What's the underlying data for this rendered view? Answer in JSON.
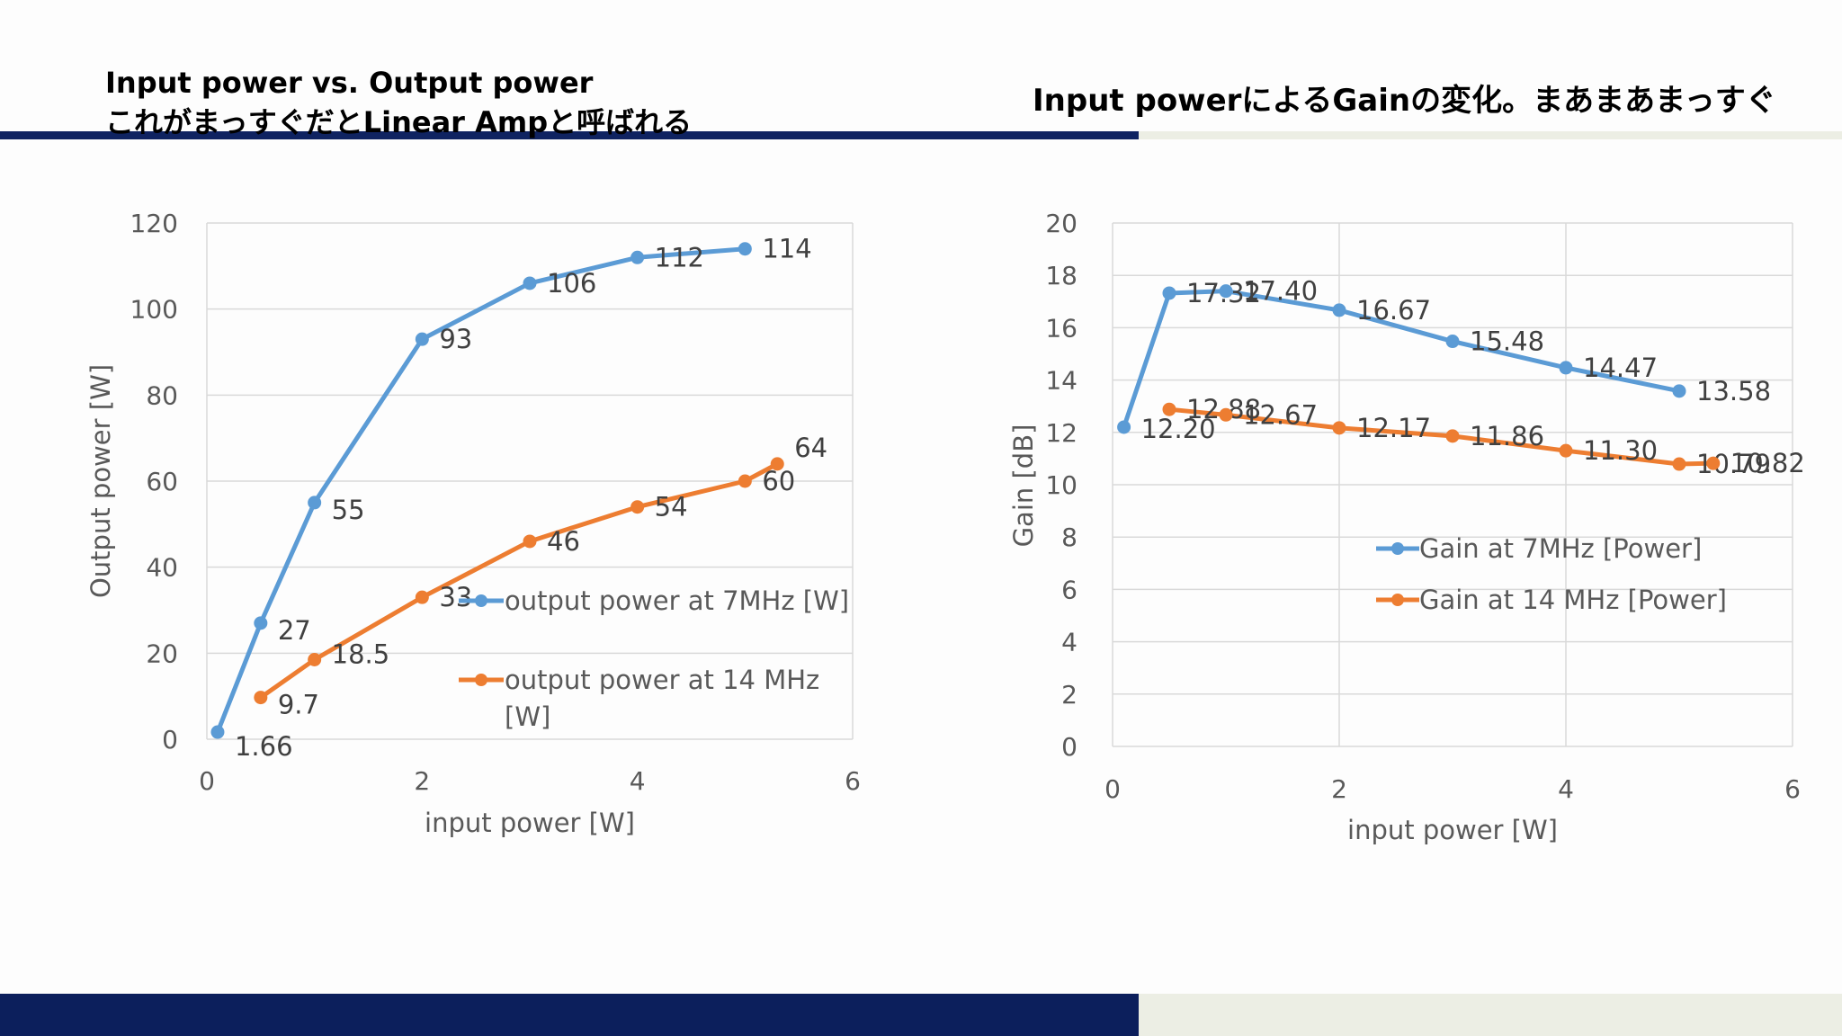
{
  "slide": {
    "title_left_line1": "Input power vs. Output power",
    "title_left_line2": "これがまっすぐだとLinear Ampと呼ばれる",
    "title_right": "Input powerによるGainの変化。まあまあまっすぐ"
  },
  "colors": {
    "series_blue": "#5b9bd5",
    "series_orange": "#ed7d31",
    "band_navy": "#0f2361",
    "band_beige": "#eceee4"
  },
  "chart_data": [
    {
      "type": "line",
      "xlabel": "input power [W]",
      "ylabel": "Output power [W]",
      "xlim": [
        0,
        6
      ],
      "ylim": [
        0,
        120
      ],
      "xticks": [
        0,
        2,
        4,
        6
      ],
      "yticks": [
        0,
        20,
        40,
        60,
        80,
        100,
        120
      ],
      "grid": "horizontal",
      "legend_position": "right-middle",
      "series": [
        {
          "name": "output power at 7MHz [W]",
          "color": "#5b9bd5",
          "points": [
            [
              0.1,
              1.66
            ],
            [
              0.5,
              27
            ],
            [
              1,
              55
            ],
            [
              2,
              93
            ],
            [
              3,
              106
            ],
            [
              4,
              112
            ],
            [
              5,
              114
            ]
          ],
          "labels": [
            "1.66",
            "27",
            "55",
            "93",
            "106",
            "112",
            "114"
          ]
        },
        {
          "name": "output power at 14 MHz [W]",
          "color": "#ed7d31",
          "points": [
            [
              0.5,
              9.7
            ],
            [
              1,
              18.5
            ],
            [
              2,
              33
            ],
            [
              3,
              46
            ],
            [
              4,
              54
            ],
            [
              5,
              60
            ],
            [
              5.3,
              64
            ]
          ],
          "labels": [
            "9.7",
            "18.5",
            "33",
            "46",
            "54",
            "60",
            "64"
          ]
        }
      ]
    },
    {
      "type": "line",
      "xlabel": "input power [W]",
      "ylabel": "Gain [dB]",
      "xlim": [
        0,
        6
      ],
      "ylim": [
        0,
        20
      ],
      "xticks": [
        0,
        2,
        4,
        6
      ],
      "yticks": [
        0,
        2,
        4,
        6,
        8,
        10,
        12,
        14,
        16,
        18,
        20
      ],
      "grid": "both",
      "legend_position": "right-middle",
      "series": [
        {
          "name": "Gain at 7MHz [Power]",
          "color": "#5b9bd5",
          "points": [
            [
              0.1,
              12.2
            ],
            [
              0.5,
              17.32
            ],
            [
              1,
              17.4
            ],
            [
              2,
              16.67
            ],
            [
              3,
              15.48
            ],
            [
              4,
              14.47
            ],
            [
              5,
              13.58
            ]
          ],
          "labels": [
            "12.20",
            "17.32",
            "17.40",
            "16.67",
            "15.48",
            "14.47",
            "13.58"
          ]
        },
        {
          "name": "Gain at 14 MHz [Power]",
          "color": "#ed7d31",
          "points": [
            [
              0.5,
              12.88
            ],
            [
              1,
              12.67
            ],
            [
              2,
              12.17
            ],
            [
              3,
              11.86
            ],
            [
              4,
              11.3
            ],
            [
              5,
              10.79
            ],
            [
              5.3,
              10.82
            ]
          ],
          "labels": [
            "12.88",
            "12.67",
            "12.17",
            "11.86",
            "11.30",
            "10.79",
            "10.82"
          ]
        }
      ]
    }
  ]
}
